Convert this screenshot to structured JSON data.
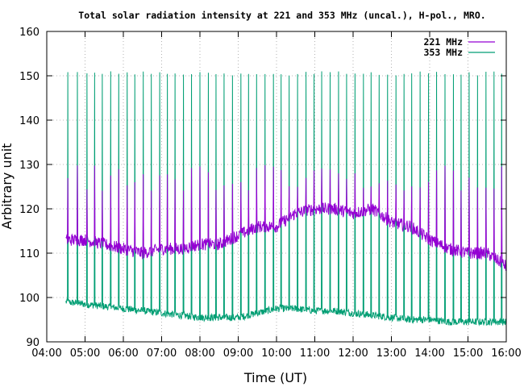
{
  "chart_data": {
    "type": "line",
    "title": "Total solar radiation intensity at 221 and 353 MHz (uncal.), H-pol., MRO.",
    "xlabel": "Time (UT)",
    "ylabel": "Arbitrary unit",
    "xlim": [
      "04:00",
      "16:00"
    ],
    "ylim": [
      90,
      160
    ],
    "x_ticks": [
      "04:00",
      "05:00",
      "06:00",
      "07:00",
      "08:00",
      "09:00",
      "10:00",
      "11:00",
      "12:00",
      "13:00",
      "14:00",
      "15:00",
      "16:00"
    ],
    "y_ticks": [
      90,
      100,
      110,
      120,
      130,
      140,
      150,
      160
    ],
    "grid": true,
    "legend_position": "top-right",
    "series": [
      {
        "name": "221 MHz",
        "color": "#9400d3",
        "baseline_trend": [
          {
            "t": "04:30",
            "v": 113
          },
          {
            "t": "05:00",
            "v": 113
          },
          {
            "t": "05:30",
            "v": 112
          },
          {
            "t": "06:00",
            "v": 111
          },
          {
            "t": "06:30",
            "v": 110
          },
          {
            "t": "07:00",
            "v": 111
          },
          {
            "t": "07:30",
            "v": 111
          },
          {
            "t": "08:00",
            "v": 112
          },
          {
            "t": "08:30",
            "v": 112
          },
          {
            "t": "09:00",
            "v": 114
          },
          {
            "t": "09:30",
            "v": 116
          },
          {
            "t": "10:00",
            "v": 116
          },
          {
            "t": "10:30",
            "v": 119
          },
          {
            "t": "11:00",
            "v": 120
          },
          {
            "t": "11:30",
            "v": 120
          },
          {
            "t": "12:00",
            "v": 119
          },
          {
            "t": "12:30",
            "v": 120
          },
          {
            "t": "13:00",
            "v": 117
          },
          {
            "t": "13:30",
            "v": 116
          },
          {
            "t": "14:00",
            "v": 113
          },
          {
            "t": "14:30",
            "v": 111
          },
          {
            "t": "15:00",
            "v": 110
          },
          {
            "t": "15:30",
            "v": 110
          },
          {
            "t": "16:00",
            "v": 107
          }
        ],
        "spike_peak": 130
      },
      {
        "name": "353 MHz",
        "color": "#009e73",
        "baseline_trend": [
          {
            "t": "04:30",
            "v": 99
          },
          {
            "t": "05:00",
            "v": 98.5
          },
          {
            "t": "05:30",
            "v": 98
          },
          {
            "t": "06:00",
            "v": 97.5
          },
          {
            "t": "06:30",
            "v": 97
          },
          {
            "t": "07:00",
            "v": 96.5
          },
          {
            "t": "07:30",
            "v": 96
          },
          {
            "t": "08:00",
            "v": 95.5
          },
          {
            "t": "08:30",
            "v": 95.5
          },
          {
            "t": "09:00",
            "v": 95.5
          },
          {
            "t": "09:30",
            "v": 96.5
          },
          {
            "t": "10:00",
            "v": 97.5
          },
          {
            "t": "10:30",
            "v": 97.5
          },
          {
            "t": "11:00",
            "v": 97
          },
          {
            "t": "11:30",
            "v": 97
          },
          {
            "t": "12:00",
            "v": 96.5
          },
          {
            "t": "12:30",
            "v": 96
          },
          {
            "t": "13:00",
            "v": 95.5
          },
          {
            "t": "13:30",
            "v": 95
          },
          {
            "t": "14:00",
            "v": 95
          },
          {
            "t": "14:30",
            "v": 94.5
          },
          {
            "t": "15:00",
            "v": 94.5
          },
          {
            "t": "15:30",
            "v": 94.5
          },
          {
            "t": "16:00",
            "v": 94.5
          }
        ],
        "spike_peak": 151
      }
    ],
    "spike_times": [
      "04:33",
      "04:48",
      "05:03",
      "05:15",
      "05:27",
      "05:40",
      "05:53",
      "06:06",
      "06:18",
      "06:31",
      "06:44",
      "06:57",
      "07:09",
      "07:21",
      "07:34",
      "07:47",
      "08:00",
      "08:13",
      "08:25",
      "08:38",
      "08:51",
      "09:04",
      "09:16",
      "09:29",
      "09:42",
      "09:55",
      "10:07",
      "10:20",
      "10:33",
      "10:46",
      "10:59",
      "11:11",
      "11:24",
      "11:37",
      "11:50",
      "12:03",
      "12:16",
      "12:28",
      "12:41",
      "12:54",
      "13:07",
      "13:20",
      "13:32",
      "13:45",
      "13:58",
      "14:11",
      "14:24",
      "14:37",
      "14:49",
      "15:02",
      "15:15",
      "15:28",
      "15:41",
      "15:53"
    ]
  }
}
